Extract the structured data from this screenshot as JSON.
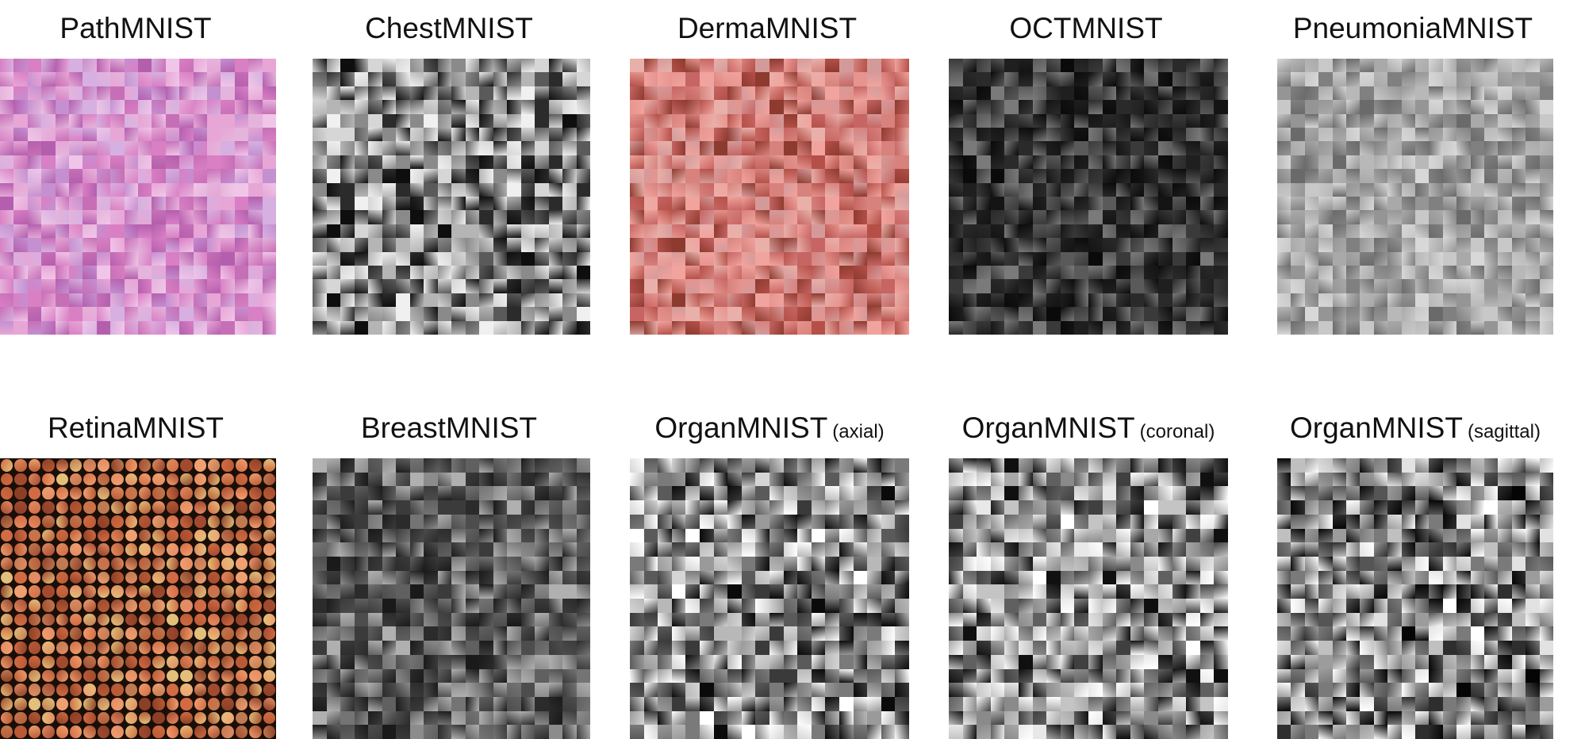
{
  "panels": [
    {
      "id": "pathmnist",
      "title": "PathMNIST",
      "subtitle": "",
      "palette": [
        "#e7a6d6",
        "#d97fc4",
        "#c76fb6",
        "#b45fae",
        "#f0c6e8",
        "#d6b0e0",
        "#c490d0",
        "#e5b4dc"
      ]
    },
    {
      "id": "chestmnist",
      "title": "ChestMNIST",
      "subtitle": "",
      "palette": [
        "#0e0e0e",
        "#2b2b2b",
        "#5a5a5a",
        "#8a8a8a",
        "#b5b5b5",
        "#d6d6d6",
        "#f0f0f0"
      ]
    },
    {
      "id": "dermamnist",
      "title": "DermaMNIST",
      "subtitle": "",
      "palette": [
        "#e6948f",
        "#d7827d",
        "#f1a39d",
        "#c66563",
        "#8d3a2f",
        "#b45048",
        "#e9b0aa",
        "#d49a9a"
      ]
    },
    {
      "id": "octmnist",
      "title": "OCTMNIST",
      "subtitle": "",
      "palette": [
        "#0a0a0a",
        "#141414",
        "#1f1f1f",
        "#2a2a2a",
        "#3a3a3a",
        "#5a5a5a",
        "#7a7a7a"
      ]
    },
    {
      "id": "pneumoniamnist",
      "title": "PneumoniaMNIST",
      "subtitle": "",
      "palette": [
        "#6a6a6a",
        "#808080",
        "#959595",
        "#a9a9a9",
        "#b8b8b8",
        "#c8c8c8",
        "#d8d8d8"
      ]
    },
    {
      "id": "retinamnist",
      "title": "RetinaMNIST",
      "subtitle": "",
      "palette": [
        "#e38b62",
        "#d26b43",
        "#b85a35",
        "#a24a2f",
        "#f0a070",
        "#c07a52",
        "#8b3f27",
        "#e3c07a"
      ]
    },
    {
      "id": "breastmnist",
      "title": "BreastMNIST",
      "subtitle": "",
      "palette": [
        "#1a1a1a",
        "#2b2b2b",
        "#3b3b3b",
        "#4d4d4d",
        "#606060",
        "#747474",
        "#8c8c8c",
        "#b0b0b0"
      ]
    },
    {
      "id": "organmnist-axial",
      "title": "OrganMNIST",
      "subtitle": "(axial)",
      "palette": [
        "#0a0a0a",
        "#3a3a3a",
        "#5a5a5a",
        "#7a7a7a",
        "#9a9a9a",
        "#b8b8b8",
        "#d5d5d5",
        "#ffffff"
      ]
    },
    {
      "id": "organmnist-coronal",
      "title": "OrganMNIST",
      "subtitle": "(coronal)",
      "palette": [
        "#101010",
        "#404040",
        "#606060",
        "#8a8a8a",
        "#a8a8a8",
        "#c4c4c4",
        "#e8e8e8",
        "#ffffff"
      ]
    },
    {
      "id": "organmnist-sagittal",
      "title": "OrganMNIST",
      "subtitle": "(sagittal)",
      "palette": [
        "#050505",
        "#2e2e2e",
        "#555555",
        "#7a7a7a",
        "#9c9c9c",
        "#c0c0c0",
        "#e2e2e2",
        "#ffffff"
      ]
    }
  ]
}
